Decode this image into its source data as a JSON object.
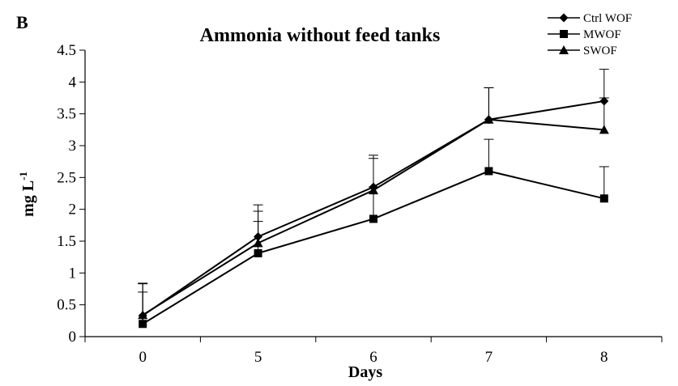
{
  "panel_label": "B",
  "chart_data": {
    "type": "line",
    "title": "Ammonia without feed tanks",
    "xlabel": "Days",
    "ylabel": "mg L",
    "ylabel_superscript": "-1",
    "categories": [
      "0",
      "5",
      "6",
      "7",
      "8"
    ],
    "ylim": [
      0,
      4.5
    ],
    "yticks": [
      "0",
      "0.5",
      "1",
      "1.5",
      "2",
      "2.5",
      "3",
      "3.5",
      "4",
      "4.5"
    ],
    "grid": false,
    "legend_position": "top-right",
    "series": [
      {
        "name": "Ctrl WOF",
        "marker": "diamond",
        "values": [
          0.33,
          1.57,
          2.35,
          3.41,
          3.7
        ],
        "error": [
          0.5,
          0.5,
          0.5,
          0.5,
          0.5
        ]
      },
      {
        "name": "MWOF",
        "marker": "square",
        "values": [
          0.2,
          1.31,
          1.85,
          2.6,
          2.17
        ],
        "error": [
          0.5,
          0.5,
          0.5,
          0.5,
          0.5
        ]
      },
      {
        "name": "SWOF",
        "marker": "triangle",
        "values": [
          0.34,
          1.47,
          2.3,
          3.41,
          3.25
        ],
        "error": [
          0.5,
          0.5,
          0.5,
          0.5,
          0.5
        ]
      }
    ]
  }
}
